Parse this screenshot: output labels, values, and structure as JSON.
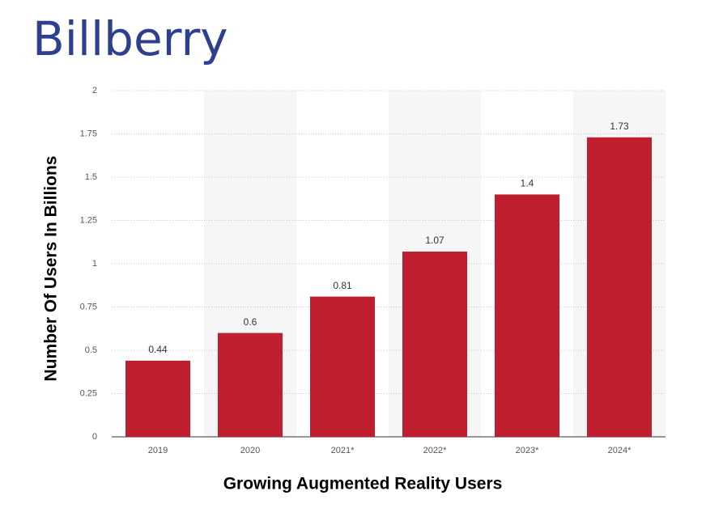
{
  "logo": "Billberry",
  "chart_data": {
    "type": "bar",
    "x_label": "Growing Augmented Reality Users",
    "y_label": "Number Of Users In Billions",
    "categories": [
      "2019",
      "2020",
      "2021*",
      "2022*",
      "2023*",
      "2024*"
    ],
    "values": [
      0.44,
      0.6,
      0.81,
      1.07,
      1.4,
      1.73
    ],
    "color": "#be1e2d",
    "ylim": [
      0,
      2
    ],
    "yticks": [
      0,
      0.25,
      0.5,
      0.75,
      1,
      1.25,
      1.5,
      1.75,
      2
    ],
    "grid": true
  }
}
